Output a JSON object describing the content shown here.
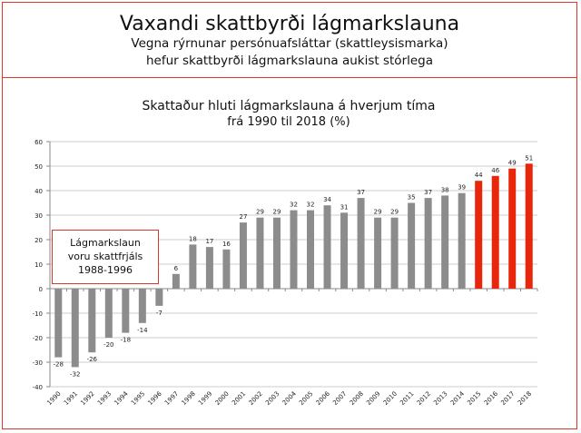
{
  "header": {
    "title": "Vaxandi skattbyrði lágmarkslauna",
    "subtitle_line1": "Vegna rýrnunar persónuafsláttar (skattleysismarka)",
    "subtitle_line2": "hefur skattbyrði lágmarkslauna aukist stórlega"
  },
  "chart_data": {
    "type": "bar",
    "title_line1": "Skattaður hluti lágmarkslauna á hverjum tíma",
    "title_line2": "frá 1990 til 2018 (%)",
    "categories": [
      "1990",
      "1991",
      "1992",
      "1993",
      "1994",
      "1995",
      "1996",
      "1997",
      "1998",
      "1999",
      "2000",
      "2001",
      "2002",
      "2003",
      "2004",
      "2005",
      "2006",
      "2007",
      "2008",
      "2009",
      "2010",
      "2011",
      "2012",
      "2013",
      "2014",
      "2015",
      "2016",
      "2017",
      "2018"
    ],
    "values": [
      -28,
      -32,
      -26,
      -20,
      -18,
      -14,
      -7,
      6,
      18,
      17,
      16,
      27,
      29,
      29,
      32,
      32,
      34,
      31,
      37,
      29,
      29,
      35,
      37,
      38,
      39,
      44,
      46,
      49,
      51
    ],
    "highlight_from": "2015",
    "colors": {
      "default": "#8c8c8c",
      "highlight": "#e8260c",
      "grid": "#cccccc",
      "border": "#d9382a"
    },
    "ylim": [
      -40,
      60
    ],
    "yticks": [
      -40,
      -30,
      -20,
      -10,
      0,
      10,
      20,
      30,
      40,
      50,
      60
    ],
    "grid": true,
    "annotation": [
      "Lágmarkslaun",
      "voru skattfrjáls",
      "1988-1996"
    ]
  }
}
